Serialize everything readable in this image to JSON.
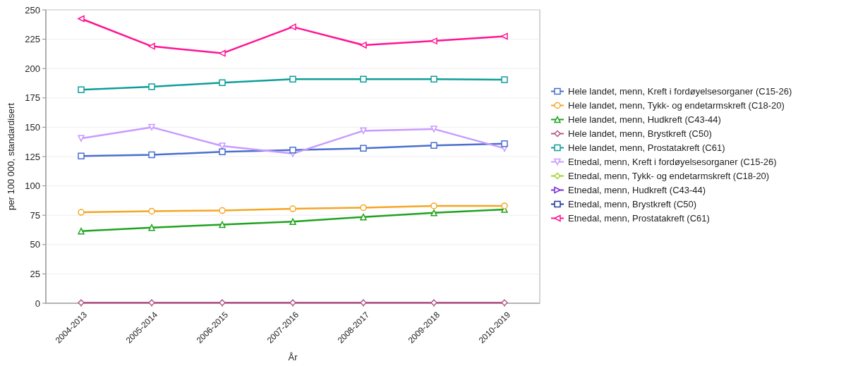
{
  "chart_data": {
    "type": "line",
    "xlabel": "År",
    "ylabel": "per 100 000, standardisert",
    "categories": [
      "2004-2013",
      "2005-2014",
      "2006-2015",
      "2007-2016",
      "2008-2017",
      "2009-2018",
      "2010-2019"
    ],
    "ylim": [
      0,
      250
    ],
    "yticks": [
      0,
      25,
      50,
      75,
      100,
      125,
      150,
      175,
      200,
      225,
      250
    ],
    "grid": "y",
    "legend": "right",
    "series": [
      {
        "name": "Hele landet, menn, Kreft i fordøyelsesorganer (C15-26)",
        "color": "#4a6fd0",
        "marker": "square",
        "values": [
          125.5,
          126.5,
          129,
          130.5,
          132,
          134.5,
          136
        ]
      },
      {
        "name": "Hele landet, menn,  Tykk- og endetarmskreft (C18-20)",
        "color": "#f5a623",
        "marker": "circle",
        "values": [
          77.5,
          78.5,
          79,
          80.5,
          81.5,
          83,
          83
        ]
      },
      {
        "name": "Hele landet, menn, Hudkreft (C43-44)",
        "color": "#1fa31f",
        "marker": "triangle",
        "values": [
          61.5,
          64.5,
          67,
          69.5,
          73.5,
          77,
          80
        ]
      },
      {
        "name": "Hele landet, menn, Brystkreft (C50)",
        "color": "#b5568a",
        "marker": "diamond",
        "values": [
          0.5,
          0.5,
          0.5,
          0.5,
          0.5,
          0.5,
          0.5
        ]
      },
      {
        "name": "Hele landet, menn, Prostatakreft (C61)",
        "color": "#0e9e9a",
        "marker": "square",
        "values": [
          182,
          184.5,
          188,
          191,
          191,
          191,
          190.5
        ]
      },
      {
        "name": "Etnedal, menn, Kreft i fordøyelsesorganer (C15-26)",
        "color": "#c89bff",
        "marker": "triangle-down",
        "values": [
          140.5,
          150,
          134,
          127.5,
          147,
          148.5,
          132
        ]
      },
      {
        "name": "Etnedal, menn,  Tykk- og endetarmskreft (C18-20)",
        "color": "#a3d12a",
        "marker": "diamond",
        "values": [
          null,
          null,
          null,
          null,
          null,
          null,
          null
        ]
      },
      {
        "name": "Etnedal, menn, Hudkreft (C43-44)",
        "color": "#7a2fd8",
        "marker": "triangle-right",
        "values": [
          null,
          null,
          null,
          null,
          null,
          null,
          null
        ]
      },
      {
        "name": "Etnedal, menn, Brystkreft (C50)",
        "color": "#1f3f9f",
        "marker": "square",
        "values": [
          null,
          null,
          null,
          null,
          null,
          null,
          null
        ]
      },
      {
        "name": "Etnedal, menn, Prostatakreft (C61)",
        "color": "#ff1493",
        "marker": "triangle-left",
        "values": [
          242.5,
          219,
          213,
          235.5,
          220,
          223.5,
          227.5
        ]
      }
    ]
  }
}
